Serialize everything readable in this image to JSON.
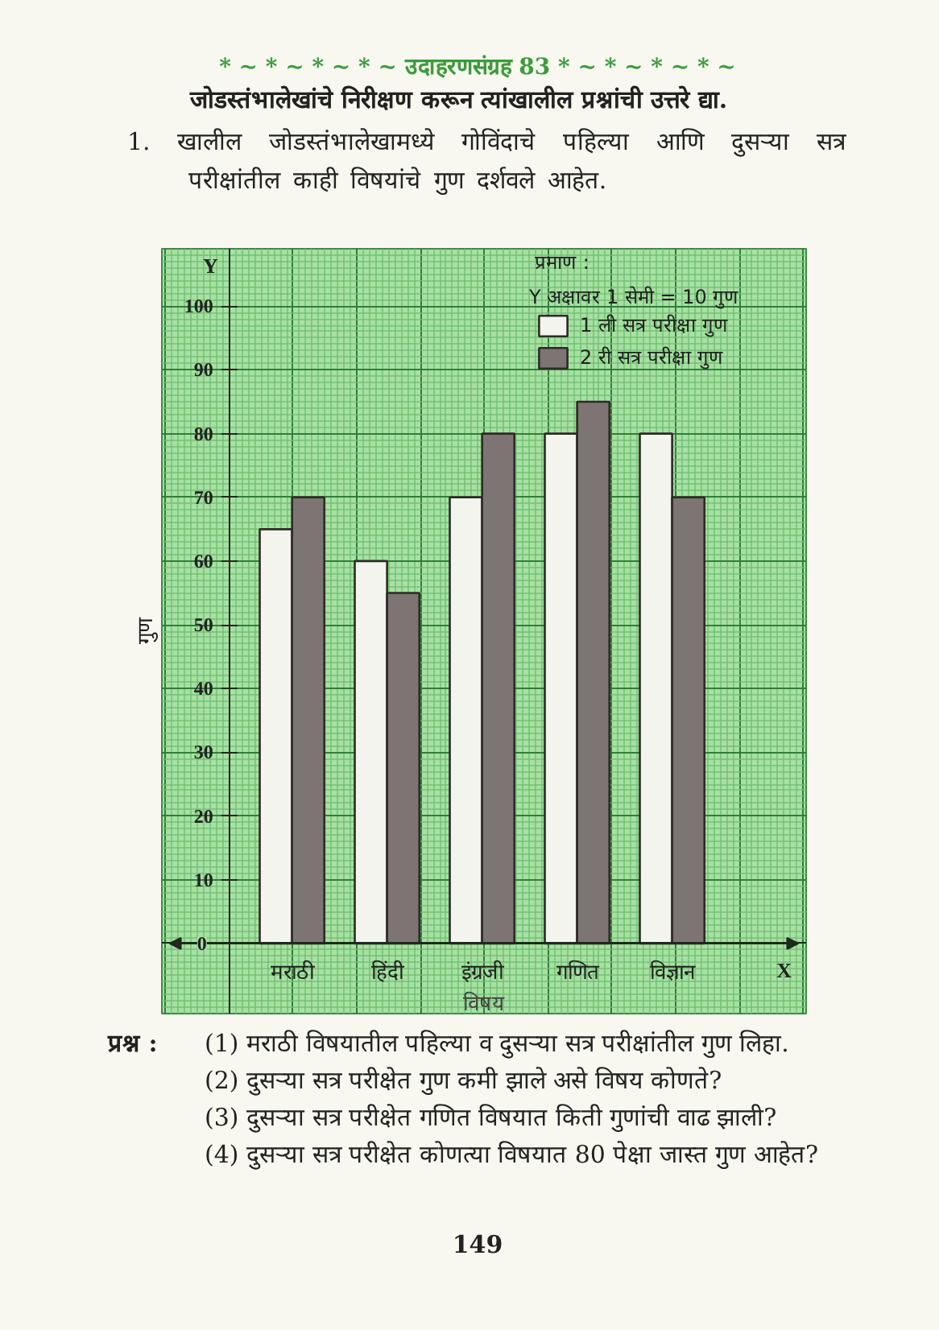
{
  "chart_data": {
    "type": "bar",
    "title": "* ~ * ~ * ~ * ~  उदाहरणसंग्रह 83  * ~ * ~ * ~ * ~",
    "subtitle": "जोडस्तंभालेखांचे निरीक्षण करून त्यांखालील प्रश्नांची उत्तरे द्या.",
    "xlabel": "विषय",
    "ylabel": "गुण",
    "legend_title": "प्रमाण :",
    "categories": [
      "मराठी",
      "हिंदी",
      "इंग्रजी",
      "गणित",
      "विज्ञान"
    ],
    "series": [
      {
        "name": "1 ली सत्र परीक्षा गुण",
        "color": "#f4f4ee",
        "values": [
          65,
          60,
          70,
          80,
          80
        ]
      },
      {
        "name": "2 री सत्र परीक्षा गुण",
        "color": "#7d7474",
        "values": [
          70,
          55,
          80,
          85,
          70
        ]
      }
    ],
    "ylim": [
      -11,
      109
    ],
    "yticks": [
      0,
      10,
      20,
      30,
      40,
      50,
      60,
      70,
      80,
      90,
      100
    ],
    "grid": true,
    "legend": "top right",
    "annotations": [
      "1. खालील जोडस्तंभालेखामध्ये गोविंदाचे पहिल्या आणि दुसऱ्या सत्र परीक्षांतील काही विषयांचे गुण दर्शवले आहेत.",
      "Y अक्षावर 1 सेमी = 10 गुण",
      "Y",
      "X",
      "प्रश्न :",
      "(1) मराठी विषयातील पहिल्या व दुसऱ्या सत्र परीक्षांतील गुण लिहा.",
      "(2) दुसऱ्या सत्र परीक्षेत गुण कमी झाले असे विषय कोणते?",
      "(3) दुसऱ्या सत्र परीक्षेत गणित विषयात किती गुणांची वाढ झाली?",
      "(4) दुसऱ्या सत्र परीक्षेत कोणत्या विषयात 80 पेक्षा जास्त गुण आहेत?",
      "149"
    ]
  }
}
